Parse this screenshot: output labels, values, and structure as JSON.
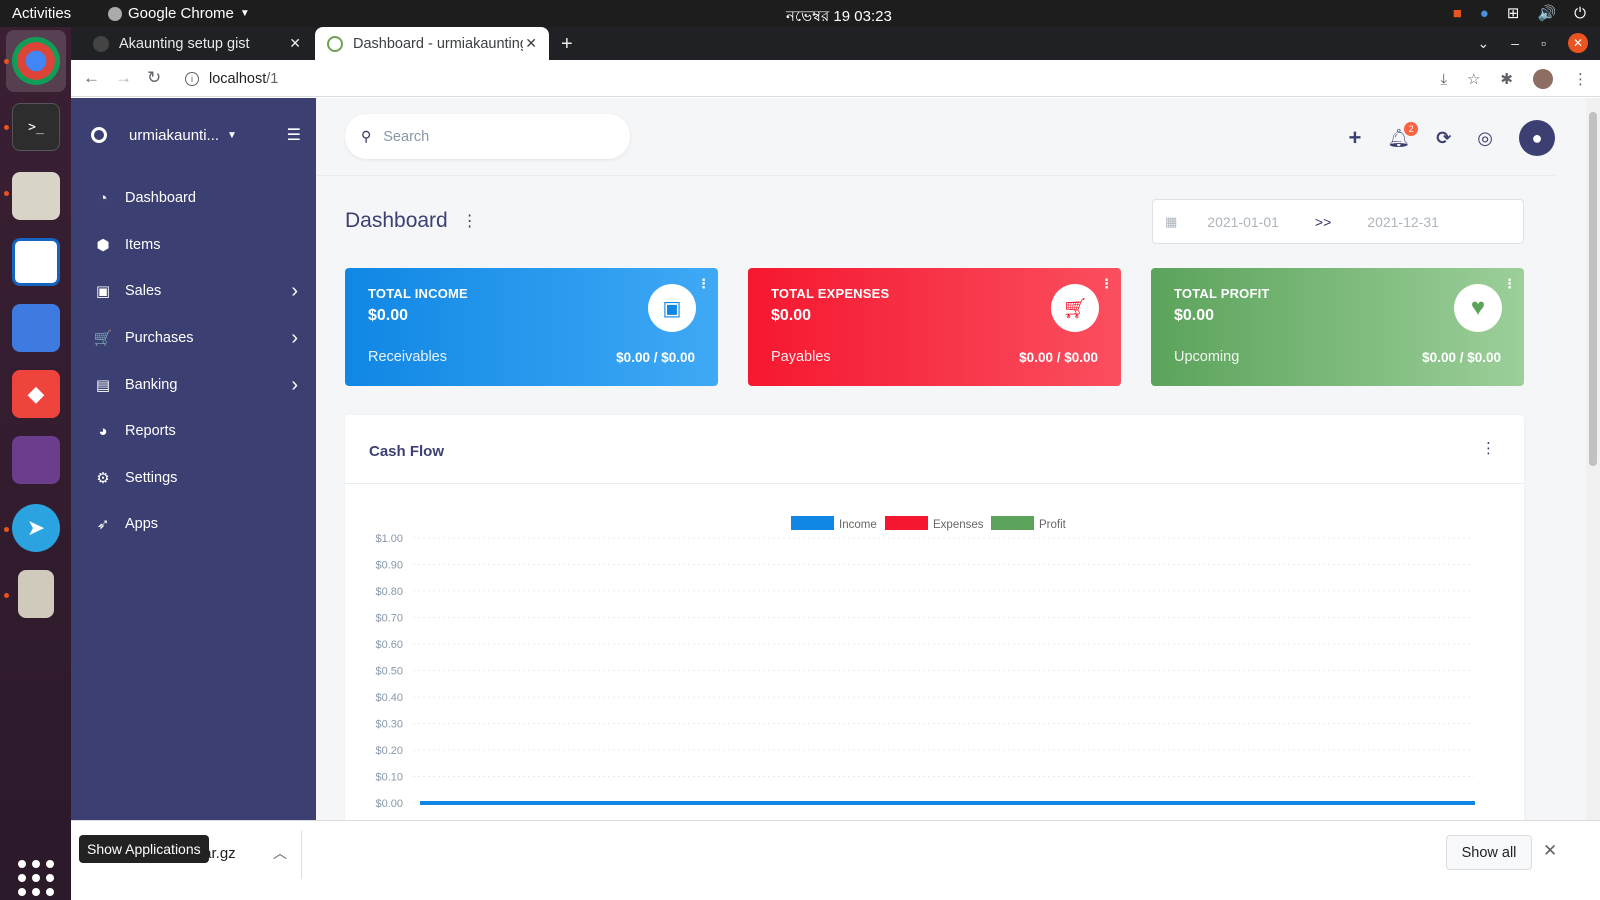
{
  "system": {
    "activities": "Activities",
    "app_name": "Google Chrome",
    "clock": "নভেম্বর 19  03:23",
    "show_applications": "Show Applications"
  },
  "browser": {
    "tabs": [
      {
        "title": "Akaunting setup gist",
        "active": false
      },
      {
        "title": "Dashboard - urmiakaunting",
        "active": true
      }
    ],
    "url_host": "localhost",
    "url_path": "/1"
  },
  "sidebar": {
    "company": "urmiakaunti...",
    "items": [
      {
        "label": "Dashboard",
        "icon": "dashboard-icon",
        "glyph": "◔",
        "has_children": false
      },
      {
        "label": "Items",
        "icon": "cube-icon",
        "glyph": "⬢",
        "has_children": false
      },
      {
        "label": "Sales",
        "icon": "money-icon",
        "glyph": "▣",
        "has_children": true
      },
      {
        "label": "Purchases",
        "icon": "cart-icon",
        "glyph": "🛒",
        "has_children": true
      },
      {
        "label": "Banking",
        "icon": "briefcase-icon",
        "glyph": "▤",
        "has_children": true
      },
      {
        "label": "Reports",
        "icon": "chart-pie-icon",
        "glyph": "◕",
        "has_children": false
      },
      {
        "label": "Settings",
        "icon": "gear-icon",
        "glyph": "⚙",
        "has_children": false
      },
      {
        "label": "Apps",
        "icon": "rocket-icon",
        "glyph": "➶",
        "has_children": false
      }
    ]
  },
  "header": {
    "search_placeholder": "Search",
    "notification_count": "2"
  },
  "dashboard": {
    "title": "Dashboard",
    "date_start": "2021-01-01",
    "date_separator": ">>",
    "date_end": "2021-12-31",
    "cards": [
      {
        "title": "TOTAL INCOME",
        "amount": "$0.00",
        "sub_label": "Receivables",
        "sub_value": "$0.00 / $0.00",
        "color": "#1d8cf8"
      },
      {
        "title": "TOTAL EXPENSES",
        "amount": "$0.00",
        "sub_label": "Payables",
        "sub_value": "$0.00 / $0.00",
        "color": "#f5172f"
      },
      {
        "title": "TOTAL PROFIT",
        "amount": "$0.00",
        "sub_label": "Upcoming",
        "sub_value": "$0.00 / $0.00",
        "color": "#5ba35b"
      }
    ],
    "cashflow_title": "Cash Flow"
  },
  "chart_data": {
    "type": "line",
    "title": "",
    "legend": [
      {
        "name": "Income",
        "color": "#1087e4"
      },
      {
        "name": "Expenses",
        "color": "#f5172f"
      },
      {
        "name": "Profit",
        "color": "#5ba35b"
      }
    ],
    "legend_position": "top-center",
    "y_ticks": [
      "$1.00",
      "$0.90",
      "$0.80",
      "$0.70",
      "$0.60",
      "$0.50",
      "$0.40",
      "$0.30",
      "$0.20",
      "$0.10",
      "$0.00"
    ],
    "ylim": [
      0,
      1
    ],
    "series": [
      {
        "name": "Income",
        "values": [
          0,
          0
        ]
      },
      {
        "name": "Expenses",
        "values": [
          0,
          0
        ]
      },
      {
        "name": "Profit",
        "values": [
          0,
          0
        ]
      }
    ],
    "grid": true
  },
  "downloads": {
    "file": "tar.gz",
    "show_all": "Show all"
  }
}
